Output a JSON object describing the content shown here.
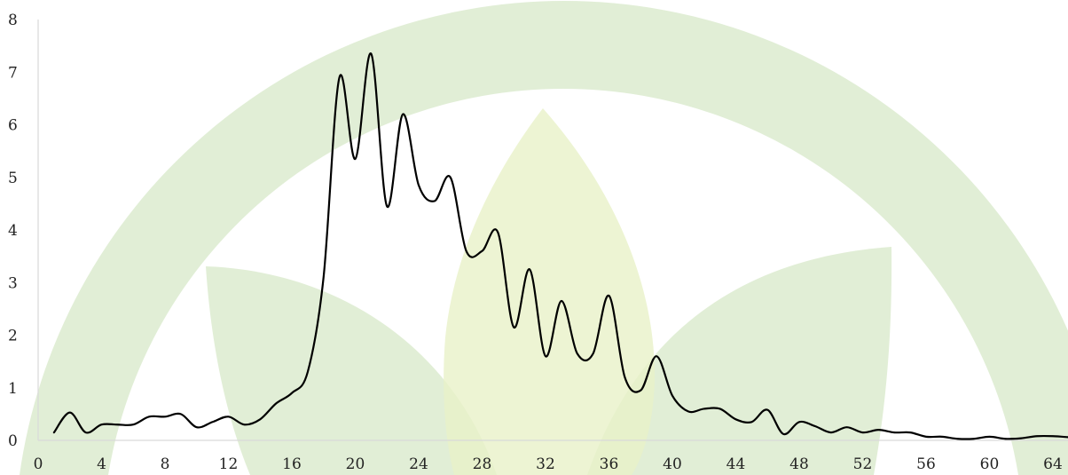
{
  "chart_data": {
    "type": "line",
    "title": "",
    "xlabel": "",
    "ylabel": "",
    "xlim": [
      0,
      64
    ],
    "ylim": [
      0,
      8
    ],
    "x_ticks": [
      0,
      4,
      8,
      12,
      16,
      20,
      24,
      28,
      32,
      36,
      40,
      44,
      48,
      52,
      56,
      60,
      64
    ],
    "y_ticks": [
      0,
      1,
      2,
      3,
      4,
      5,
      6,
      7,
      8
    ],
    "grid": false,
    "legend": "none",
    "line_color": "#000000",
    "watermark": "green-leaf-arc-logo",
    "watermark_colors": [
      "#dcebcf",
      "#e8f1c8"
    ],
    "series": [
      {
        "x": [
          1,
          2,
          3,
          4,
          5,
          6,
          7,
          8,
          9,
          10,
          11,
          12,
          13,
          14,
          15,
          16,
          17,
          18,
          19,
          20,
          21,
          22,
          23,
          24,
          25,
          26,
          27,
          28,
          29,
          30,
          31,
          32,
          33,
          34,
          35,
          36,
          37,
          38,
          39,
          40,
          41,
          42,
          43,
          44,
          45,
          46,
          47,
          48,
          49,
          50,
          51,
          52,
          53,
          54,
          55,
          56,
          57,
          58,
          59,
          60,
          61,
          62,
          63,
          64,
          65
        ],
        "y": [
          0.15,
          0.53,
          0.15,
          0.3,
          0.3,
          0.3,
          0.45,
          0.45,
          0.5,
          0.25,
          0.35,
          0.45,
          0.3,
          0.4,
          0.7,
          0.9,
          1.3,
          3.1,
          6.9,
          5.35,
          7.35,
          4.45,
          6.2,
          4.85,
          4.55,
          5.0,
          3.6,
          3.6,
          3.95,
          2.15,
          3.25,
          1.6,
          2.65,
          1.65,
          1.65,
          2.75,
          1.2,
          0.95,
          1.6,
          0.85,
          0.55,
          0.6,
          0.6,
          0.4,
          0.35,
          0.58,
          0.12,
          0.35,
          0.27,
          0.15,
          0.25,
          0.15,
          0.2,
          0.15,
          0.15,
          0.07,
          0.07,
          0.03,
          0.03,
          0.07,
          0.03,
          0.04,
          0.08,
          0.08,
          0.06
        ]
      }
    ]
  }
}
